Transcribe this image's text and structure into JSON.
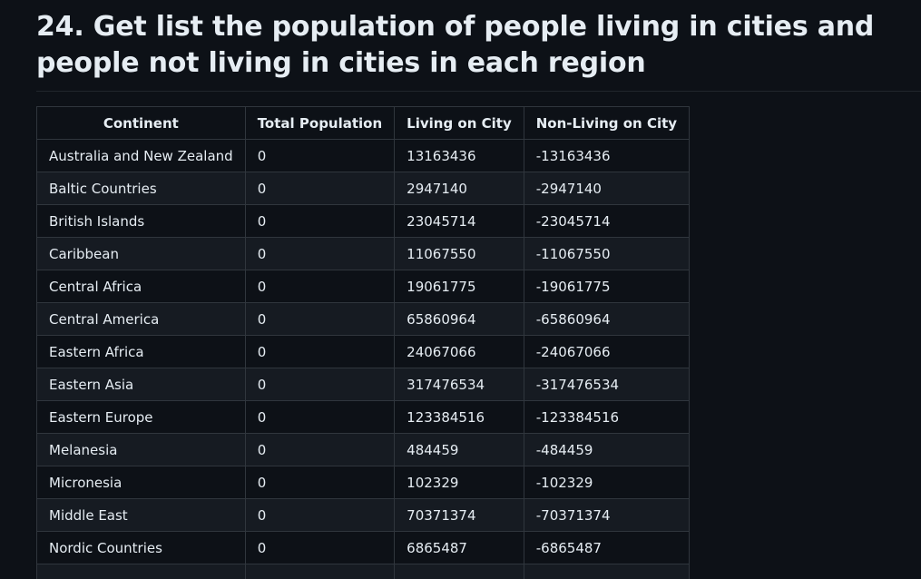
{
  "heading": "24. Get list the population of people living in cities and people not living in cities in each region",
  "table": {
    "headers": [
      "Continent",
      "Total Population",
      "Living on City",
      "Non-Living on City"
    ],
    "rows": [
      [
        "Australia and New Zealand",
        "0",
        "13163436",
        "-13163436"
      ],
      [
        "Baltic Countries",
        "0",
        "2947140",
        "-2947140"
      ],
      [
        "British Islands",
        "0",
        "23045714",
        "-23045714"
      ],
      [
        "Caribbean",
        "0",
        "11067550",
        "-11067550"
      ],
      [
        "Central Africa",
        "0",
        "19061775",
        "-19061775"
      ],
      [
        "Central America",
        "0",
        "65860964",
        "-65860964"
      ],
      [
        "Eastern Africa",
        "0",
        "24067066",
        "-24067066"
      ],
      [
        "Eastern Asia",
        "0",
        "317476534",
        "-317476534"
      ],
      [
        "Eastern Europe",
        "0",
        "123384516",
        "-123384516"
      ],
      [
        "Melanesia",
        "0",
        "484459",
        "-484459"
      ],
      [
        "Micronesia",
        "0",
        "102329",
        "-102329"
      ],
      [
        "Middle East",
        "0",
        "70371374",
        "-70371374"
      ],
      [
        "Nordic Countries",
        "0",
        "6865487",
        "-6865487"
      ],
      [
        "",
        "",
        "",
        ""
      ]
    ]
  }
}
